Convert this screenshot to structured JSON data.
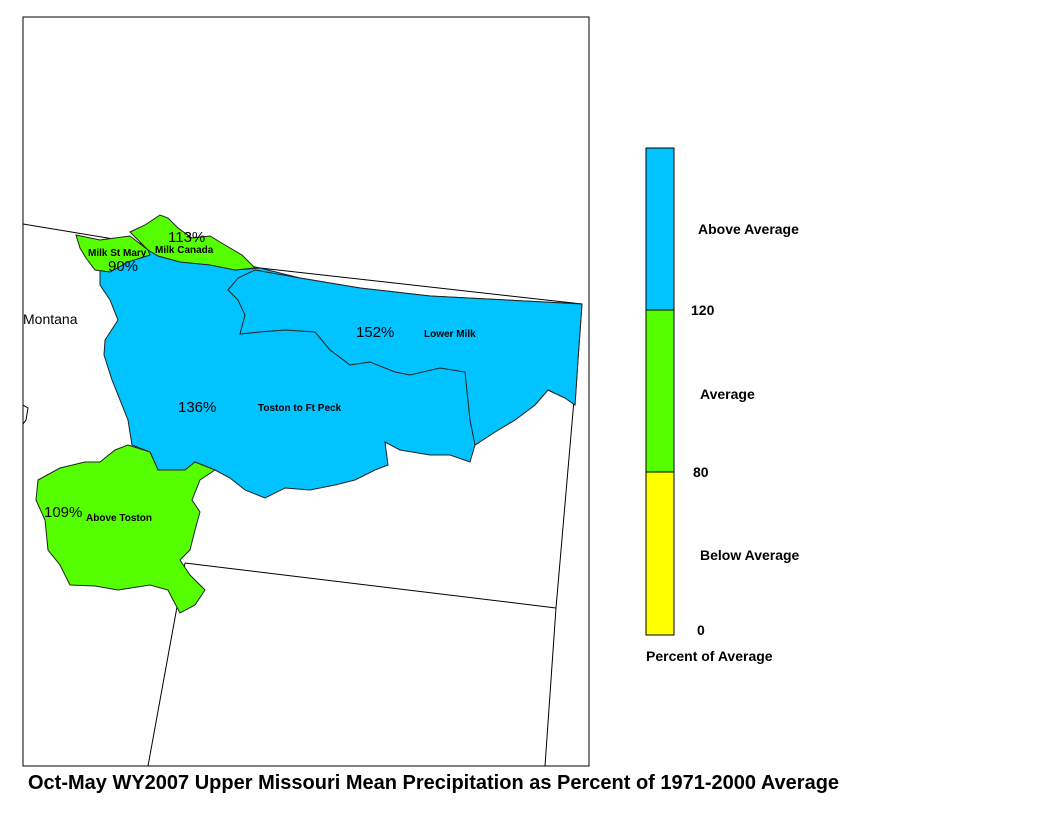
{
  "title": "Oct-May WY2007 Upper Missouri Mean Precipitation as Percent of 1971-2000 Average",
  "state_label": "Montana",
  "colors": {
    "above": "#00c3ff",
    "average": "#55ff00",
    "below": "#ffff00",
    "boundary": "#000000"
  },
  "basins": [
    {
      "name": "Milk St Mary",
      "percent": "90%",
      "category": "average"
    },
    {
      "name": "Milk Canada",
      "percent": "113%",
      "category": "average"
    },
    {
      "name": "Lower Milk",
      "percent": "152%",
      "category": "above"
    },
    {
      "name": "Toston to Ft Peck",
      "percent": "136%",
      "category": "above"
    },
    {
      "name": "Above Toston",
      "percent": "109%",
      "category": "average"
    }
  ],
  "legend": {
    "title": "Percent of Average",
    "categories": [
      {
        "label": "Above Average",
        "color": "#00c3ff"
      },
      {
        "label": "Average",
        "color": "#55ff00"
      },
      {
        "label": "Below Average",
        "color": "#ffff00"
      }
    ],
    "breaks": [
      "120",
      "80",
      "0"
    ]
  }
}
